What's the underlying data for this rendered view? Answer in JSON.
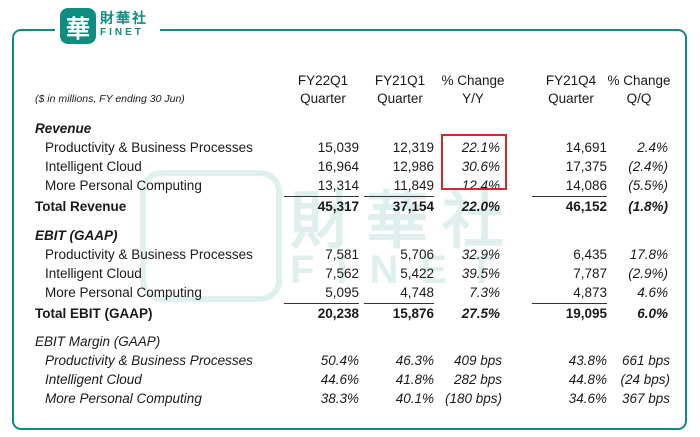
{
  "brand": {
    "cn": "財華社",
    "en": "FINET",
    "mark": "華"
  },
  "watermark": {
    "cn": "財華社",
    "en": "FINET",
    "mark": "華"
  },
  "columns": [
    {
      "line1": "FY22Q1",
      "line2": "Quarter"
    },
    {
      "line1": "FY21Q1",
      "line2": "Quarter"
    },
    {
      "line1": "% Change",
      "line2": "Y/Y"
    },
    {
      "line1": "FY21Q4",
      "line2": "Quarter"
    },
    {
      "line1": "% Change",
      "line2": "Q/Q"
    }
  ],
  "note": "($ in millions, FY ending 30 Jun)",
  "revenue": {
    "title": "Revenue",
    "rows": [
      {
        "label": "Productivity & Business Processes",
        "v": [
          "15,039",
          "12,319",
          "22.1%",
          "14,691",
          "2.4%"
        ]
      },
      {
        "label": "Intelligent Cloud",
        "v": [
          "16,964",
          "12,986",
          "30.6%",
          "17,375",
          "(2.4%)"
        ]
      },
      {
        "label": "More Personal Computing",
        "v": [
          "13,314",
          "11,849",
          "12.4%",
          "14,086",
          "(5.5%)"
        ]
      }
    ],
    "total": {
      "label": "Total Revenue",
      "v": [
        "45,317",
        "37,154",
        "22.0%",
        "46,152",
        "(1.8%)"
      ]
    }
  },
  "ebit": {
    "title": "EBIT (GAAP)",
    "rows": [
      {
        "label": "Productivity & Business Processes",
        "v": [
          "7,581",
          "5,706",
          "32.9%",
          "6,435",
          "17.8%"
        ]
      },
      {
        "label": "Intelligent Cloud",
        "v": [
          "7,562",
          "5,422",
          "39.5%",
          "7,787",
          "(2.9%)"
        ]
      },
      {
        "label": "More Personal Computing",
        "v": [
          "5,095",
          "4,748",
          "7.3%",
          "4,873",
          "4.6%"
        ]
      }
    ],
    "total": {
      "label": "Total EBIT (GAAP)",
      "v": [
        "20,238",
        "15,876",
        "27.5%",
        "19,095",
        "6.0%"
      ]
    }
  },
  "margin": {
    "title": "EBIT Margin (GAAP)",
    "rows": [
      {
        "label": "Productivity & Business Processes",
        "v": [
          "50.4%",
          "46.3%",
          "409 bps",
          "43.8%",
          "661 bps"
        ]
      },
      {
        "label": "Intelligent Cloud",
        "v": [
          "44.6%",
          "41.8%",
          "282 bps",
          "44.8%",
          "(24 bps)"
        ]
      },
      {
        "label": "More Personal Computing",
        "v": [
          "38.3%",
          "40.1%",
          "(180 bps)",
          "34.6%",
          "367 bps"
        ]
      }
    ]
  },
  "colors": {
    "brand": "#0d8c80",
    "highlight": "#d9262c"
  }
}
